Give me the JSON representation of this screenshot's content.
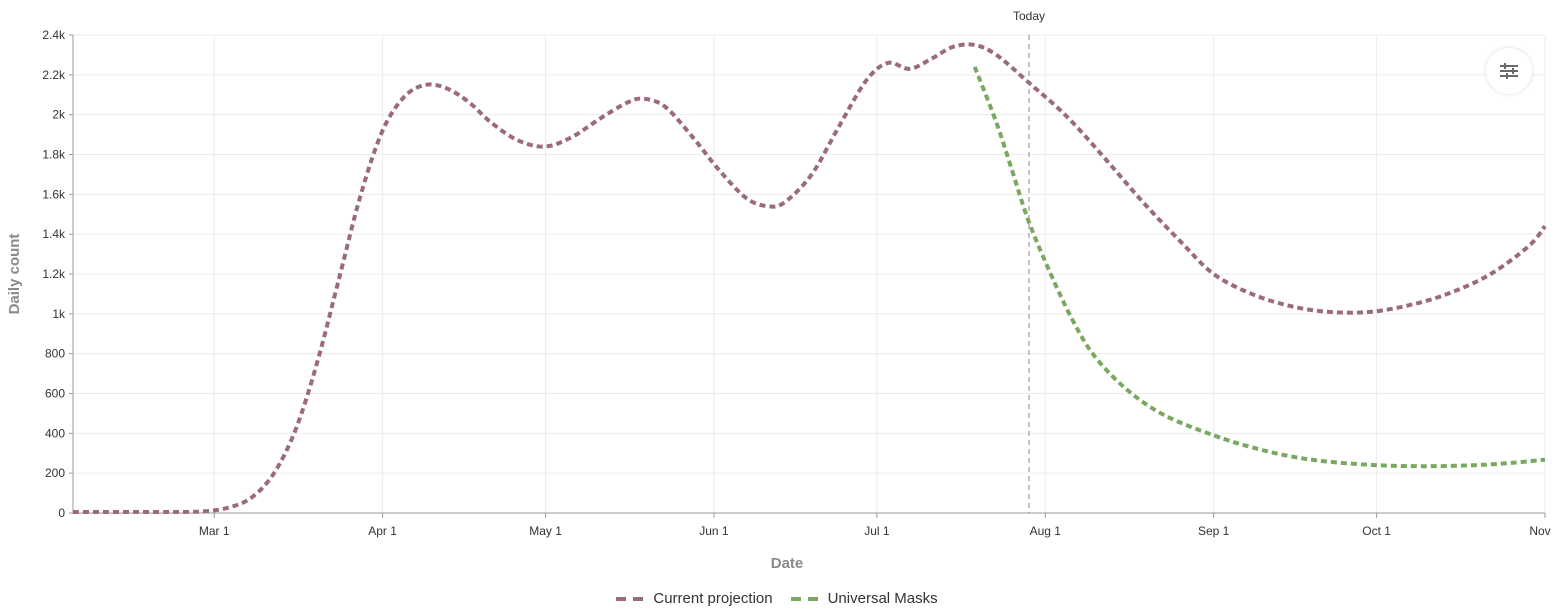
{
  "chart_data": {
    "type": "line",
    "title": "",
    "xlabel": "Date",
    "ylabel": "Daily count",
    "ylim": [
      0,
      2400
    ],
    "xlim": [
      "2020-02-04",
      "2020-11-01"
    ],
    "y_ticks": [
      0,
      200,
      400,
      600,
      800,
      1000,
      1200,
      1400,
      1600,
      1800,
      2000,
      2200,
      2400
    ],
    "y_tick_labels": [
      "0",
      "200",
      "400",
      "600",
      "800",
      "1k",
      "1.2k",
      "1.4k",
      "1.6k",
      "1.8k",
      "2k",
      "2.2k",
      "2.4k"
    ],
    "x_ticks": [
      {
        "date": "2020-03-01",
        "label": "Mar 1"
      },
      {
        "date": "2020-04-01",
        "label": "Apr 1"
      },
      {
        "date": "2020-05-01",
        "label": "May 1"
      },
      {
        "date": "2020-06-01",
        "label": "Jun 1"
      },
      {
        "date": "2020-07-01",
        "label": "Jul 1"
      },
      {
        "date": "2020-08-01",
        "label": "Aug 1"
      },
      {
        "date": "2020-09-01",
        "label": "Sep 1"
      },
      {
        "date": "2020-10-01",
        "label": "Oct 1"
      },
      {
        "date": "2020-11-01",
        "label": "Nov 1"
      }
    ],
    "grid": true,
    "annotations": [
      {
        "type": "vline",
        "date": "2020-07-29",
        "label": "Today"
      }
    ],
    "legend_position": "bottom",
    "series": [
      {
        "name": "Current projection",
        "color": "#9b6b7b",
        "style": "dotted",
        "points": [
          [
            "2020-02-04",
            5
          ],
          [
            "2020-02-20",
            5
          ],
          [
            "2020-02-28",
            8
          ],
          [
            "2020-03-04",
            30
          ],
          [
            "2020-03-08",
            80
          ],
          [
            "2020-03-12",
            200
          ],
          [
            "2020-03-16",
            420
          ],
          [
            "2020-03-20",
            760
          ],
          [
            "2020-03-24",
            1180
          ],
          [
            "2020-03-28",
            1600
          ],
          [
            "2020-04-01",
            1920
          ],
          [
            "2020-04-05",
            2090
          ],
          [
            "2020-04-09",
            2150
          ],
          [
            "2020-04-13",
            2130
          ],
          [
            "2020-04-17",
            2060
          ],
          [
            "2020-04-21",
            1960
          ],
          [
            "2020-04-26",
            1870
          ],
          [
            "2020-05-01",
            1840
          ],
          [
            "2020-05-06",
            1890
          ],
          [
            "2020-05-11",
            1980
          ],
          [
            "2020-05-16",
            2060
          ],
          [
            "2020-05-19",
            2080
          ],
          [
            "2020-05-23",
            2040
          ],
          [
            "2020-05-28",
            1890
          ],
          [
            "2020-06-02",
            1720
          ],
          [
            "2020-06-07",
            1580
          ],
          [
            "2020-06-11",
            1540
          ],
          [
            "2020-06-14",
            1560
          ],
          [
            "2020-06-19",
            1700
          ],
          [
            "2020-06-24",
            1940
          ],
          [
            "2020-06-29",
            2170
          ],
          [
            "2020-07-03",
            2260
          ],
          [
            "2020-07-07",
            2230
          ],
          [
            "2020-07-11",
            2280
          ],
          [
            "2020-07-15",
            2340
          ],
          [
            "2020-07-19",
            2350
          ],
          [
            "2020-07-23",
            2300
          ],
          [
            "2020-07-29",
            2160
          ],
          [
            "2020-08-05",
            1990
          ],
          [
            "2020-08-12",
            1780
          ],
          [
            "2020-08-19",
            1560
          ],
          [
            "2020-08-26",
            1360
          ],
          [
            "2020-09-01",
            1200
          ],
          [
            "2020-09-08",
            1100
          ],
          [
            "2020-09-15",
            1040
          ],
          [
            "2020-09-22",
            1010
          ],
          [
            "2020-09-30",
            1010
          ],
          [
            "2020-10-08",
            1050
          ],
          [
            "2020-10-15",
            1110
          ],
          [
            "2020-10-22",
            1200
          ],
          [
            "2020-10-29",
            1340
          ],
          [
            "2020-11-01",
            1440
          ]
        ]
      },
      {
        "name": "Universal Masks",
        "color": "#7aa860",
        "style": "dotted",
        "points": [
          [
            "2020-07-19",
            2240
          ],
          [
            "2020-07-23",
            1960
          ],
          [
            "2020-07-26",
            1710
          ],
          [
            "2020-07-29",
            1460
          ],
          [
            "2020-08-02",
            1200
          ],
          [
            "2020-08-06",
            970
          ],
          [
            "2020-08-10",
            790
          ],
          [
            "2020-08-16",
            620
          ],
          [
            "2020-08-23",
            490
          ],
          [
            "2020-09-01",
            390
          ],
          [
            "2020-09-08",
            330
          ],
          [
            "2020-09-15",
            285
          ],
          [
            "2020-09-22",
            258
          ],
          [
            "2020-10-01",
            240
          ],
          [
            "2020-10-10",
            235
          ],
          [
            "2020-10-19",
            240
          ],
          [
            "2020-10-26",
            252
          ],
          [
            "2020-11-01",
            268
          ]
        ]
      }
    ]
  },
  "controls": {
    "settings_icon": "sliders-icon"
  }
}
